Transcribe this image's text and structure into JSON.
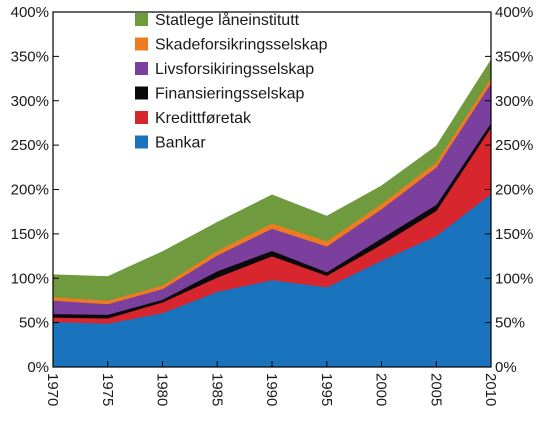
{
  "chart_data": {
    "type": "area",
    "stacked": true,
    "title": "",
    "xlabel": "",
    "ylabel": "",
    "x": [
      1970,
      1975,
      1980,
      1985,
      1990,
      1995,
      2000,
      2005,
      2010
    ],
    "xtick_labels": [
      "1970",
      "1975",
      "1980",
      "1985",
      "1990",
      "1995",
      "2000",
      "2005",
      "2010"
    ],
    "ylim": [
      0,
      400
    ],
    "yticks": [
      0,
      50,
      100,
      150,
      200,
      250,
      300,
      350,
      400
    ],
    "ytick_labels": [
      "0%",
      "50%",
      "100%",
      "150%",
      "200%",
      "250%",
      "300%",
      "350%",
      "400%"
    ],
    "y_axis_both_sides": true,
    "grid": false,
    "legend_position": "top-center",
    "series": [
      {
        "name": "Bankar",
        "color": "#1a73bd",
        "values": [
          51,
          49,
          61,
          85,
          98,
          90,
          120,
          148,
          195
        ]
      },
      {
        "name": "Kredittføretak",
        "color": "#d7262e",
        "values": [
          5,
          6,
          12,
          16,
          27,
          13,
          18,
          28,
          75
        ]
      },
      {
        "name": "Finansieringsselskap",
        "color": "#0a0a0a",
        "values": [
          4,
          4,
          3,
          7,
          6,
          4,
          7,
          7,
          5
        ]
      },
      {
        "name": "Livsforsikiringsselskap",
        "color": "#7b3f9d",
        "values": [
          15,
          12,
          12,
          18,
          25,
          29,
          33,
          42,
          45
        ]
      },
      {
        "name": "Skadeforsikringsselskap",
        "color": "#ef7b21",
        "values": [
          4,
          4,
          4,
          5,
          6,
          6,
          6,
          6,
          6
        ]
      },
      {
        "name": "Statlege låneinstitutt",
        "color": "#6f9a3e",
        "values": [
          25,
          27,
          38,
          32,
          32,
          28,
          20,
          18,
          20
        ]
      }
    ]
  }
}
